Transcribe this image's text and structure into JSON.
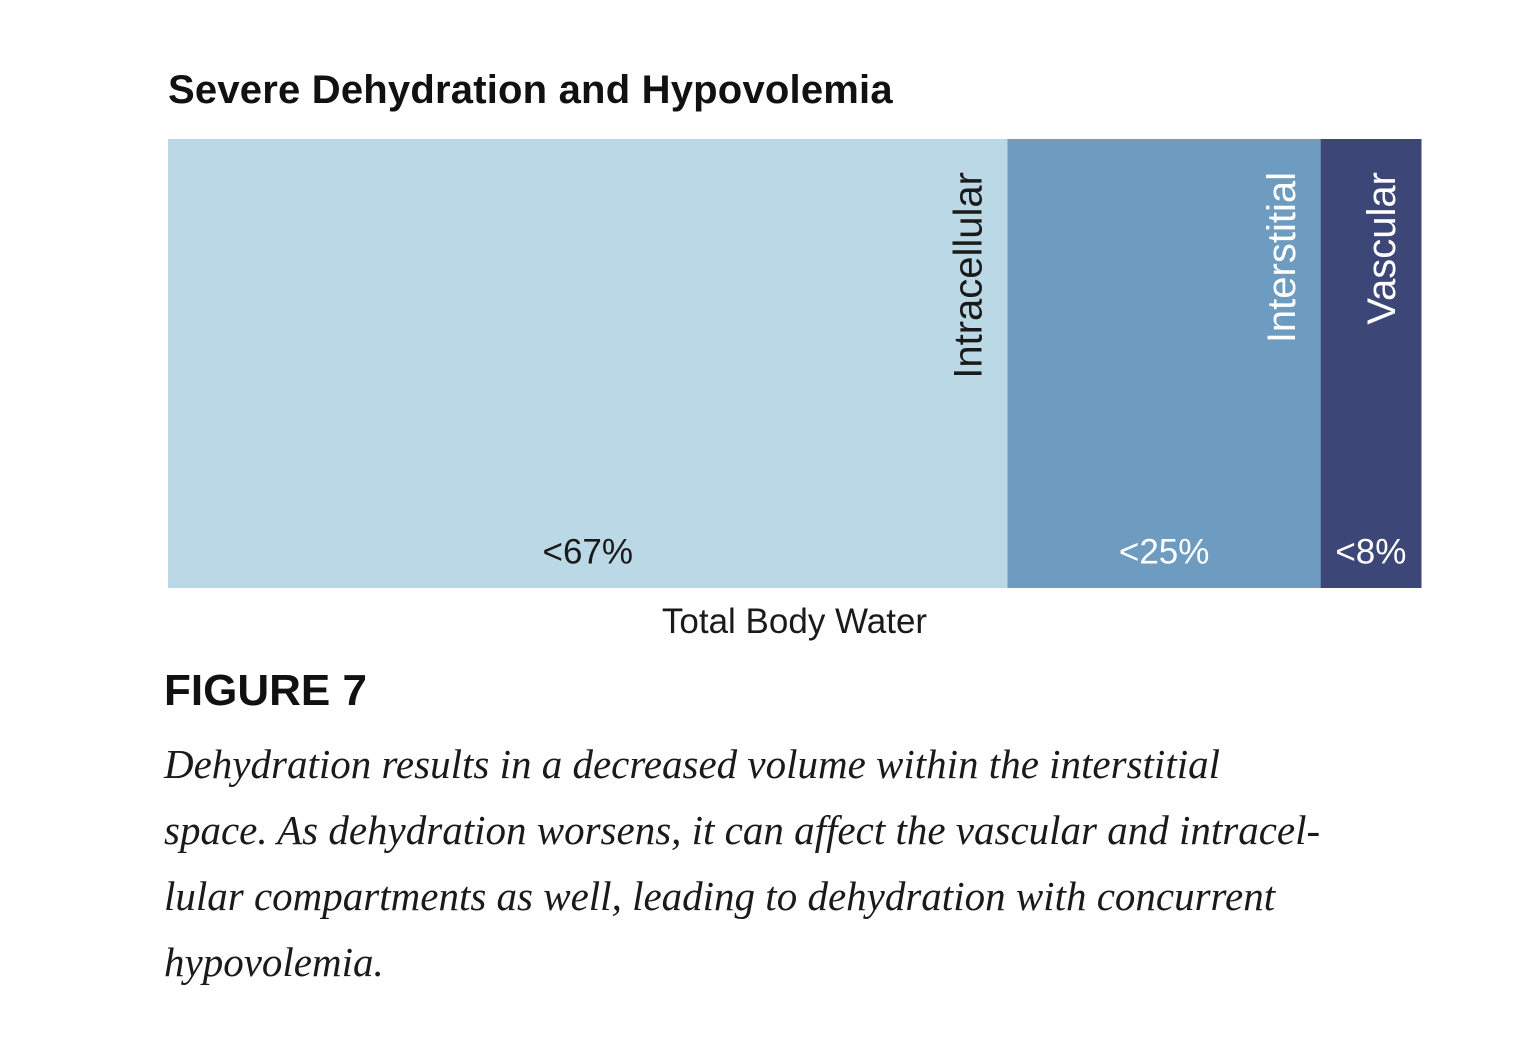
{
  "chart_data": {
    "type": "bar",
    "orientation": "horizontal-stacked",
    "title": "Severe Dehydration and Hypovolemia",
    "xlabel": "Total Body Water",
    "ylabel": "",
    "categories": [
      "Intracellular",
      "Interstitial",
      "Vascular"
    ],
    "values": [
      67,
      25,
      8
    ],
    "value_labels": [
      "<67%",
      "<25%",
      "<8%"
    ],
    "colors": [
      "#bbd8e6",
      "#6e9bc0",
      "#3c4777"
    ],
    "label_colors": [
      "#1a1a1a",
      "#ffffff",
      "#ffffff"
    ],
    "xlim": [
      0,
      100
    ],
    "grid": false,
    "legend": "none"
  },
  "figure": {
    "label": "FIGURE 7",
    "caption_lines": [
      "Dehydration results in a decreased volume within the interstitial",
      "space. As dehydration worsens, it can affect the vascular and intracel-",
      "lular compartments as well, leading to dehydration with concurrent",
      "hypovolemia."
    ]
  }
}
